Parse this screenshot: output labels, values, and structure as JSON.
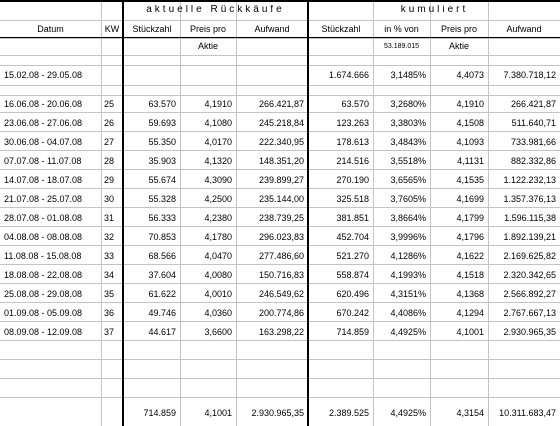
{
  "sections": {
    "current": "aktuelle Rückkäufe",
    "cumulative": "kumuliert"
  },
  "headers": {
    "datum": "Datum",
    "kw": "KW",
    "stueckzahl": "Stückzahl",
    "preis_line1": "Preis pro",
    "preis_line2": "Aktie",
    "aufwand": "Aufwand",
    "cum_stueckzahl": "Stückzahl",
    "pct_line1": "in % von",
    "pct_line2": "53.189.015",
    "cum_preis_line1": "Preis pro",
    "cum_preis_line2": "Aktie",
    "cum_aufwand": "Aufwand"
  },
  "initial_row": {
    "datum": "15.02.08 - 29.05.08",
    "cum_stueck": "1.674.666",
    "cum_pct": "3,1485%",
    "cum_preis": "4,4073",
    "cum_aufwand": "7.380.718,12"
  },
  "rows": [
    {
      "datum": "16.06.08 - 20.06.08",
      "kw": "25",
      "stueck": "63.570",
      "preis": "4,1910",
      "aufwand": "266.421,87",
      "cum_stueck": "63.570",
      "cum_pct": "3,2680%",
      "cum_preis": "4,1910",
      "cum_aufwand": "266.421,87"
    },
    {
      "datum": "23.06.08 - 27.06.08",
      "kw": "26",
      "stueck": "59.693",
      "preis": "4,1080",
      "aufwand": "245.218,84",
      "cum_stueck": "123.263",
      "cum_pct": "3,3803%",
      "cum_preis": "4,1508",
      "cum_aufwand": "511.640,71"
    },
    {
      "datum": "30.06.08 - 04.07.08",
      "kw": "27",
      "stueck": "55.350",
      "preis": "4,0170",
      "aufwand": "222.340,95",
      "cum_stueck": "178.613",
      "cum_pct": "3,4843%",
      "cum_preis": "4,1093",
      "cum_aufwand": "733.981,66"
    },
    {
      "datum": "07.07.08 - 11.07.08",
      "kw": "28",
      "stueck": "35.903",
      "preis": "4,1320",
      "aufwand": "148.351,20",
      "cum_stueck": "214.516",
      "cum_pct": "3,5518%",
      "cum_preis": "4,1131",
      "cum_aufwand": "882.332,86"
    },
    {
      "datum": "14.07.08 - 18.07.08",
      "kw": "29",
      "stueck": "55.674",
      "preis": "4,3090",
      "aufwand": "239.899,27",
      "cum_stueck": "270.190",
      "cum_pct": "3,6565%",
      "cum_preis": "4,1535",
      "cum_aufwand": "1.122.232,13"
    },
    {
      "datum": "21.07.08 - 25.07.08",
      "kw": "30",
      "stueck": "55.328",
      "preis": "4,2500",
      "aufwand": "235.144,00",
      "cum_stueck": "325.518",
      "cum_pct": "3,7605%",
      "cum_preis": "4,1699",
      "cum_aufwand": "1.357.376,13"
    },
    {
      "datum": "28.07.08 - 01.08.08",
      "kw": "31",
      "stueck": "56.333",
      "preis": "4,2380",
      "aufwand": "238.739,25",
      "cum_stueck": "381.851",
      "cum_pct": "3,8664%",
      "cum_preis": "4,1799",
      "cum_aufwand": "1.596.115,38"
    },
    {
      "datum": "04.08.08 - 08.08.08",
      "kw": "32",
      "stueck": "70.853",
      "preis": "4,1780",
      "aufwand": "296.023,83",
      "cum_stueck": "452.704",
      "cum_pct": "3,9996%",
      "cum_preis": "4,1796",
      "cum_aufwand": "1.892.139,21"
    },
    {
      "datum": "11.08.08 - 15.08.08",
      "kw": "33",
      "stueck": "68.566",
      "preis": "4,0470",
      "aufwand": "277.486,60",
      "cum_stueck": "521.270",
      "cum_pct": "4,1286%",
      "cum_preis": "4,1622",
      "cum_aufwand": "2.169.625,82"
    },
    {
      "datum": "18.08.08 - 22.08.08",
      "kw": "34",
      "stueck": "37.604",
      "preis": "4,0080",
      "aufwand": "150.716,83",
      "cum_stueck": "558.874",
      "cum_pct": "4,1993%",
      "cum_preis": "4,1518",
      "cum_aufwand": "2.320.342,65"
    },
    {
      "datum": "25.08.08 - 29.08.08",
      "kw": "35",
      "stueck": "61.622",
      "preis": "4,0010",
      "aufwand": "246.549,62",
      "cum_stueck": "620.496",
      "cum_pct": "4,3151%",
      "cum_preis": "4,1368",
      "cum_aufwand": "2.566.892,27"
    },
    {
      "datum": "01.09.08 - 05.09.08",
      "kw": "36",
      "stueck": "49.746",
      "preis": "4,0360",
      "aufwand": "200.774,86",
      "cum_stueck": "670.242",
      "cum_pct": "4,4086%",
      "cum_preis": "4,1294",
      "cum_aufwand": "2.767.667,13"
    },
    {
      "datum": "08.09.08 - 12.09.08",
      "kw": "37",
      "stueck": "44.617",
      "preis": "3,6600",
      "aufwand": "163.298,22",
      "cum_stueck": "714.859",
      "cum_pct": "4,4925%",
      "cum_preis": "4,1001",
      "cum_aufwand": "2.930.965,35"
    }
  ],
  "totals": {
    "stueck": "714.859",
    "preis": "4,1001",
    "aufwand": "2.930.965,35",
    "cum_stueck": "2.389.525",
    "cum_pct": "4,4925%",
    "cum_preis": "4,3154",
    "cum_aufwand": "10.311.683,47"
  }
}
